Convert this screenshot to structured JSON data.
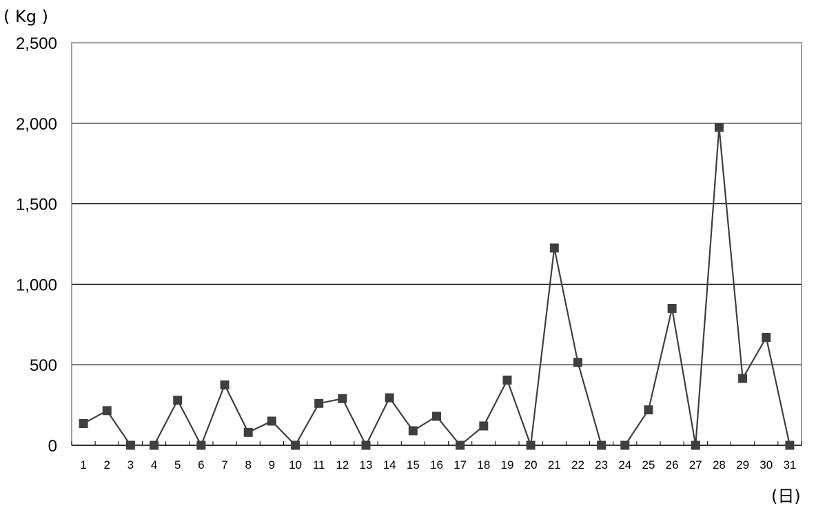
{
  "chart_data": {
    "type": "line",
    "ylabel": "( Kg )",
    "xlabel": "(日)",
    "ylim": [
      0,
      2500
    ],
    "yticks": [
      0,
      500,
      1000,
      1500,
      2000,
      2500
    ],
    "ytick_labels": [
      "0",
      "500",
      "1,000",
      "1,500",
      "2,000",
      "2,500"
    ],
    "categories": [
      "1",
      "2",
      "3",
      "4",
      "5",
      "6",
      "7",
      "8",
      "9",
      "10",
      "11",
      "12",
      "13",
      "14",
      "15",
      "16",
      "17",
      "18",
      "19",
      "20",
      "21",
      "22",
      "23",
      "24",
      "25",
      "26",
      "27",
      "28",
      "29",
      "30",
      "31"
    ],
    "series": [
      {
        "values": [
          135,
          215,
          0,
          0,
          280,
          0,
          375,
          80,
          150,
          0,
          260,
          290,
          0,
          295,
          90,
          180,
          0,
          120,
          405,
          0,
          1225,
          515,
          0,
          0,
          220,
          850,
          0,
          1975,
          415,
          670,
          0
        ],
        "color": "#3f3f3f",
        "marker": "square"
      }
    ],
    "grid": "horizontal",
    "legend": "none"
  }
}
